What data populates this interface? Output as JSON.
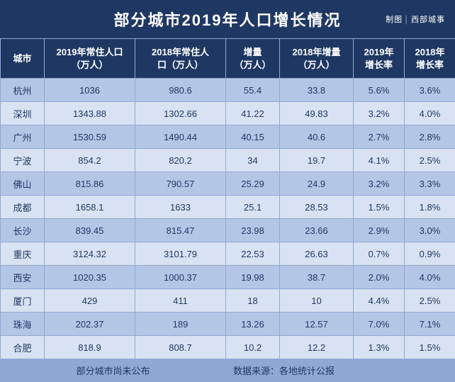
{
  "palette": {
    "bg": "#1f3863",
    "header_bg": "#1f3863",
    "header_color": "#ffffff",
    "title_color": "#ffffff",
    "grid": "#8ea9d4",
    "row_a": "#b4c6e6",
    "row_b": "#d9e2f2",
    "footer_bg": "#8ea9d4",
    "cell_text": "#1f3863"
  },
  "title": "部分城市2019年人口增长情况",
  "credit_prefix": "制图",
  "credit_source": "西部城事",
  "columns": [
    "城市",
    "2019年常住人口\n（万人）",
    "2018年常住人\n口（万人）",
    "增量\n（万人）",
    "2018年增量\n（万人）",
    "2019年\n增长率",
    "2018年\n增长率"
  ],
  "rows": [
    [
      "杭州",
      "1036",
      "980.6",
      "55.4",
      "33.8",
      "5.6%",
      "3.6%"
    ],
    [
      "深圳",
      "1343.88",
      "1302.66",
      "41.22",
      "49.83",
      "3.2%",
      "4.0%"
    ],
    [
      "广州",
      "1530.59",
      "1490.44",
      "40.15",
      "40.6",
      "2.7%",
      "2.8%"
    ],
    [
      "宁波",
      "854.2",
      "820.2",
      "34",
      "19.7",
      "4.1%",
      "2.5%"
    ],
    [
      "佛山",
      "815.86",
      "790.57",
      "25.29",
      "24.9",
      "3.2%",
      "3.3%"
    ],
    [
      "成都",
      "1658.1",
      "1633",
      "25.1",
      "28.53",
      "1.5%",
      "1.8%"
    ],
    [
      "长沙",
      "839.45",
      "815.47",
      "23.98",
      "23.66",
      "2.9%",
      "3.0%"
    ],
    [
      "重庆",
      "3124.32",
      "3101.79",
      "22.53",
      "26.63",
      "0.7%",
      "0.9%"
    ],
    [
      "西安",
      "1020.35",
      "1000.37",
      "19.98",
      "38.7",
      "2.0%",
      "4.0%"
    ],
    [
      "厦门",
      "429",
      "411",
      "18",
      "10",
      "4.4%",
      "2.5%"
    ],
    [
      "珠海",
      "202.37",
      "189",
      "13.26",
      "12.57",
      "7.0%",
      "7.1%"
    ],
    [
      "合肥",
      "818.9",
      "808.7",
      "10.2",
      "12.2",
      "1.3%",
      "1.5%"
    ]
  ],
  "footer_note": "部分城市尚未公布",
  "footer_source": "数据来源：各地统计公报",
  "type": "table",
  "fontsize_title": 22,
  "fontsize_header": 13,
  "fontsize_cell": 13
}
